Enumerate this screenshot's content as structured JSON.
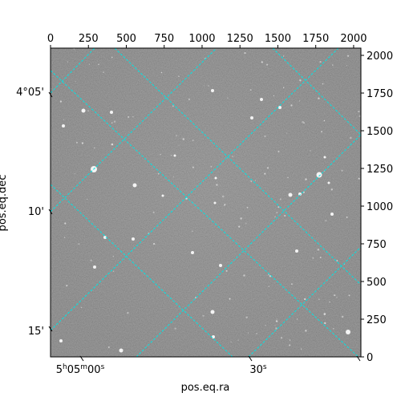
{
  "chart_data": {
    "type": "image",
    "title": "",
    "xlabel": "pos.eq.ra",
    "ylabel": "pos.eq.dec",
    "pixel_axes": {
      "x": {
        "range": [
          0,
          2048
        ],
        "ticks": [
          0,
          250,
          500,
          750,
          1000,
          1250,
          1500,
          1750,
          2000
        ]
      },
      "y": {
        "range": [
          0,
          2048
        ],
        "ticks": [
          0,
          250,
          500,
          750,
          1000,
          1250,
          1500,
          1750,
          2000
        ]
      }
    },
    "world_axes": {
      "ra_tick_labels": [
        "5h05m00s",
        "30s"
      ],
      "dec_tick_labels": [
        "4°05'",
        "10'",
        "15'"
      ]
    },
    "grid": true,
    "grid_color": "#00e5e5",
    "image_style": "grayscale star field",
    "frame_color": "#000000"
  }
}
